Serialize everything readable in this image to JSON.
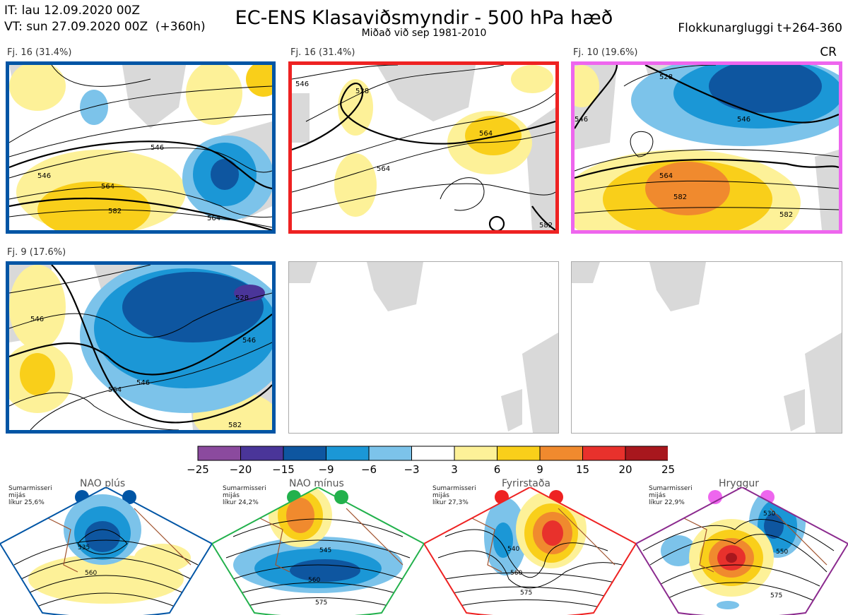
{
  "header": {
    "it": "IT: lau 12.09.2020 00Z",
    "vt": "VT: sun 27.09.2020 00Z  (+360h)",
    "title": "EC-ENS Klasaviðsmyndir - 500 hPa hæð",
    "subtitle": "Miðað við sep 1981-2010",
    "window": "Flokkunargluggi t+264-360",
    "cr": "CR"
  },
  "panels": [
    {
      "label": "Fj. 16 (31.4%)",
      "border": "#0055a5",
      "contours": [
        "546",
        "564",
        "582",
        "564",
        "546"
      ]
    },
    {
      "label": "Fj. 16 (31.4%)",
      "border": "#ee2222",
      "contours": [
        "546",
        "528",
        "564",
        "564",
        "582"
      ]
    },
    {
      "label": "Fj. 10 (19.6%)",
      "border": "#ee66ee",
      "contours": [
        "546",
        "528",
        "546",
        "564",
        "582",
        "582"
      ]
    },
    {
      "label": "Fj. 9 (17.6%)",
      "border": "#0055a5",
      "contours": [
        "546",
        "528",
        "546",
        "564",
        "546",
        "582"
      ]
    }
  ],
  "colorbar": {
    "colors": [
      "#8b4a9e",
      "#4a3599",
      "#0e56a0",
      "#1b97d6",
      "#7cc3ea",
      "#ffffff",
      "#fdf198",
      "#f9cf1a",
      "#f08a2e",
      "#e8312c",
      "#a8171d"
    ],
    "ticks": [
      "−25",
      "−20",
      "−15",
      "−9",
      "−6",
      "−3",
      "3",
      "6",
      "9",
      "15",
      "20",
      "25"
    ]
  },
  "regimes": [
    {
      "name": "NAO plús",
      "info": [
        "Sumarmisseri",
        "mijás",
        "líkur 25,6%"
      ],
      "color": "#0055a5",
      "contours": [
        "535",
        "560"
      ]
    },
    {
      "name": "NAO mínus",
      "info": [
        "Sumarmisseri",
        "mijás",
        "líkur 24,2%"
      ],
      "color": "#22b14c",
      "contours": [
        "545",
        "560",
        "575"
      ]
    },
    {
      "name": "Fyrirstaða",
      "info": [
        "Sumarmisseri",
        "mijás",
        "líkur 27,3%"
      ],
      "color": "#ee2222",
      "contours": [
        "540",
        "560",
        "575"
      ]
    },
    {
      "name": "Hryggur",
      "info": [
        "Sumarmisseri",
        "mijás",
        "líkur 22,9%"
      ],
      "color": "#ee66ee",
      "contours": [
        "530",
        "550",
        "575"
      ]
    }
  ]
}
